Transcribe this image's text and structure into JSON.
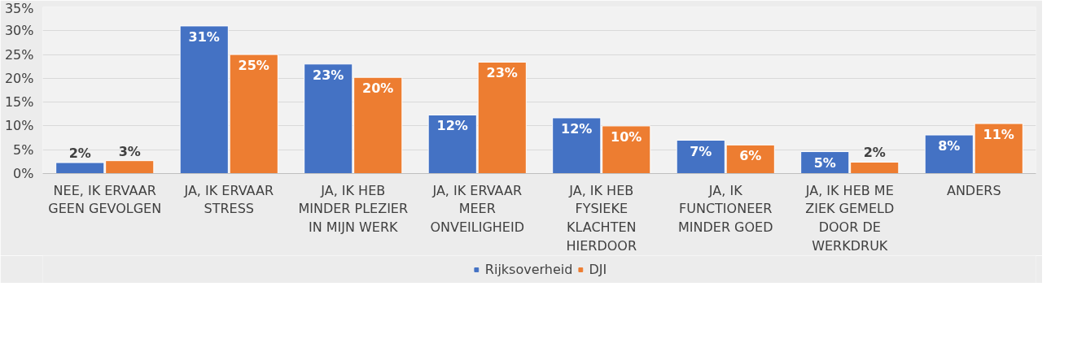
{
  "chart_data": {
    "type": "bar",
    "categories": [
      "NEE, IK ERVAAR GEEN GEVOLGEN",
      "JA, IK ERVAAR STRESS",
      "JA, IK HEB MINDER PLEZIER IN MIJN WERK",
      "JA, IK ERVAAR MEER ONVEILIGHEID",
      "JA, IK HEB FYSIEKE KLACHTEN HIERDOOR",
      "JA, IK FUNCTIONEER MINDER GOED",
      "JA, IK HEB ME ZIEK GEMELD DOOR DE WERKDRUK",
      "ANDERS"
    ],
    "series": [
      {
        "name": "Rijksoverheid",
        "color": "#4472c4",
        "values": [
          2.3,
          31,
          23,
          12.3,
          11.7,
          7,
          4.6,
          8.1
        ],
        "value_labels": [
          "2%",
          "31%",
          "23%",
          "12%",
          "12%",
          "7%",
          "5%",
          "8%"
        ]
      },
      {
        "name": "DJI",
        "color": "#ed7d31",
        "values": [
          2.7,
          25,
          20.2,
          23.4,
          10,
          6,
          2.4,
          10.5
        ],
        "value_labels": [
          "3%",
          "25%",
          "20%",
          "23%",
          "10%",
          "6%",
          "2%",
          "11%"
        ]
      }
    ],
    "ylim": [
      0,
      35
    ],
    "yticks": [
      {
        "value": 0,
        "label": "0%"
      },
      {
        "value": 5,
        "label": "5%"
      },
      {
        "value": 10,
        "label": "10%"
      },
      {
        "value": 15,
        "label": "15%"
      },
      {
        "value": 20,
        "label": "20%"
      },
      {
        "value": 25,
        "label": "25%"
      },
      {
        "value": 30,
        "label": "30%"
      },
      {
        "value": 35,
        "label": "35%"
      }
    ],
    "grid": "y",
    "legend": "bottom"
  }
}
